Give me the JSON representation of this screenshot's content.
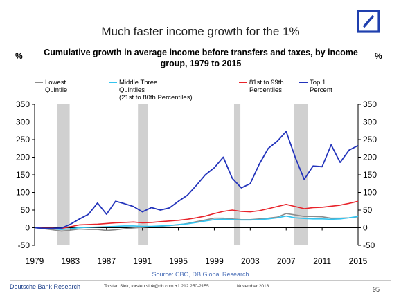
{
  "slide_title": "Much faster income growth for the 1%",
  "footer": {
    "left": "Deutsche Bank Research",
    "middle": "Torsten Slok, torsten.slok@db.com +1 212 250-2155",
    "date": "November 2018",
    "page": "95"
  },
  "source": "Source: CBO, DB Global Research",
  "colors": {
    "logo_blue": "#1f3fae",
    "lowest": "#8c8c8c",
    "middle": "#33c3ee",
    "upper": "#e8232a",
    "top1": "#2233bb",
    "recession": "#d0d0d0"
  },
  "chart_data": {
    "type": "line",
    "title": "Cumulative growth in average income before transfers and taxes, by income group, 1979 to 2015",
    "y_unit_left": "%",
    "y_unit_right": "%",
    "xlim": [
      1979,
      2015
    ],
    "ylim": [
      -50,
      350
    ],
    "x_ticks": [
      1979,
      1983,
      1987,
      1991,
      1995,
      1999,
      2003,
      2007,
      2011,
      2015
    ],
    "y_ticks": [
      -50,
      0,
      50,
      100,
      150,
      200,
      250,
      300,
      350
    ],
    "recessions": [
      [
        1981.5,
        1982.9
      ],
      [
        1990.5,
        1991.6
      ],
      [
        2001.2,
        2001.9
      ],
      [
        2007.9,
        2009.4
      ]
    ],
    "x": [
      1979,
      1980,
      1981,
      1982,
      1983,
      1984,
      1985,
      1986,
      1987,
      1988,
      1989,
      1990,
      1991,
      1992,
      1993,
      1994,
      1995,
      1996,
      1997,
      1998,
      1999,
      2000,
      2001,
      2002,
      2003,
      2004,
      2005,
      2006,
      2007,
      2008,
      2009,
      2010,
      2011,
      2012,
      2013,
      2014,
      2015
    ],
    "series": [
      {
        "name": "Lowest Quintile",
        "legend_lines": [
          "Lowest",
          "Quintile"
        ],
        "color_key": "lowest",
        "values": [
          0,
          -3,
          -6,
          -10,
          -7,
          -4,
          -5,
          -5,
          -8,
          -6,
          -3,
          -1,
          1,
          3,
          4,
          6,
          8,
          12,
          17,
          22,
          27,
          27,
          25,
          23,
          23,
          25,
          27,
          30,
          40,
          36,
          32,
          32,
          31,
          27,
          27,
          28,
          31
        ]
      },
      {
        "name": "Middle Three Quintiles (21st to 80th Percentiles)",
        "legend_lines": [
          "Middle Three",
          "Quintiles",
          "(21st to 80th Percentiles)"
        ],
        "color_key": "middle",
        "values": [
          0,
          -2,
          -3,
          -5,
          -3,
          0,
          1,
          2,
          3,
          4,
          5,
          5,
          4,
          4,
          5,
          6,
          9,
          11,
          15,
          19,
          23,
          24,
          23,
          22,
          22,
          23,
          25,
          28,
          33,
          28,
          26,
          25,
          25,
          24,
          25,
          28,
          32
        ]
      },
      {
        "name": "81st to 99th Percentiles",
        "legend_lines": [
          "81st to 99th",
          "Percentiles"
        ],
        "color_key": "upper",
        "values": [
          0,
          -1,
          -1,
          -2,
          3,
          8,
          9,
          10,
          12,
          14,
          15,
          16,
          14,
          15,
          17,
          19,
          21,
          24,
          28,
          33,
          40,
          46,
          50,
          46,
          45,
          48,
          54,
          60,
          66,
          60,
          54,
          57,
          58,
          61,
          64,
          69,
          75
        ]
      },
      {
        "name": "Top 1 Percent",
        "legend_lines": [
          "Top 1",
          "Percent"
        ],
        "color_key": "top1",
        "values": [
          0,
          -2,
          -2,
          -1,
          10,
          25,
          38,
          70,
          38,
          75,
          68,
          60,
          45,
          57,
          50,
          56,
          75,
          92,
          120,
          150,
          170,
          200,
          140,
          113,
          125,
          180,
          225,
          245,
          273,
          200,
          137,
          175,
          173,
          235,
          185,
          220,
          233
        ]
      }
    ]
  }
}
